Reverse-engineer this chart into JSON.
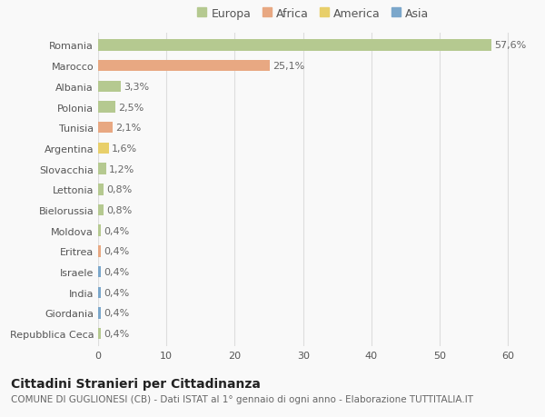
{
  "categories": [
    "Repubblica Ceca",
    "Giordania",
    "India",
    "Israele",
    "Eritrea",
    "Moldova",
    "Bielorussia",
    "Lettonia",
    "Slovacchia",
    "Argentina",
    "Tunisia",
    "Polonia",
    "Albania",
    "Marocco",
    "Romania"
  ],
  "values": [
    0.4,
    0.4,
    0.4,
    0.4,
    0.4,
    0.4,
    0.8,
    0.8,
    1.2,
    1.6,
    2.1,
    2.5,
    3.3,
    25.1,
    57.6
  ],
  "labels": [
    "0,4%",
    "0,4%",
    "0,4%",
    "0,4%",
    "0,4%",
    "0,4%",
    "0,8%",
    "0,8%",
    "1,2%",
    "1,6%",
    "2,1%",
    "2,5%",
    "3,3%",
    "25,1%",
    "57,6%"
  ],
  "colors": [
    "#b5c990",
    "#7ba7cb",
    "#7ba7cb",
    "#7ba7cb",
    "#e8a882",
    "#b5c990",
    "#b5c990",
    "#b5c990",
    "#b5c990",
    "#e8cf6a",
    "#e8a882",
    "#b5c990",
    "#b5c990",
    "#e8a882",
    "#b5c990"
  ],
  "legend_labels": [
    "Europa",
    "Africa",
    "America",
    "Asia"
  ],
  "legend_colors": [
    "#b5c990",
    "#e8a882",
    "#e8cf6a",
    "#7ba7cb"
  ],
  "title": "Cittadini Stranieri per Cittadinanza",
  "subtitle": "COMUNE DI GUGLIONESI (CB) - Dati ISTAT al 1° gennaio di ogni anno - Elaborazione TUTTITALIA.IT",
  "xlim": [
    0,
    63
  ],
  "xlabel_ticks": [
    0,
    10,
    20,
    30,
    40,
    50,
    60
  ],
  "bg_color": "#f9f9f9",
  "grid_color": "#dddddd",
  "bar_height": 0.55,
  "title_fontsize": 10,
  "subtitle_fontsize": 7.5,
  "label_fontsize": 8,
  "tick_fontsize": 8,
  "legend_fontsize": 9
}
